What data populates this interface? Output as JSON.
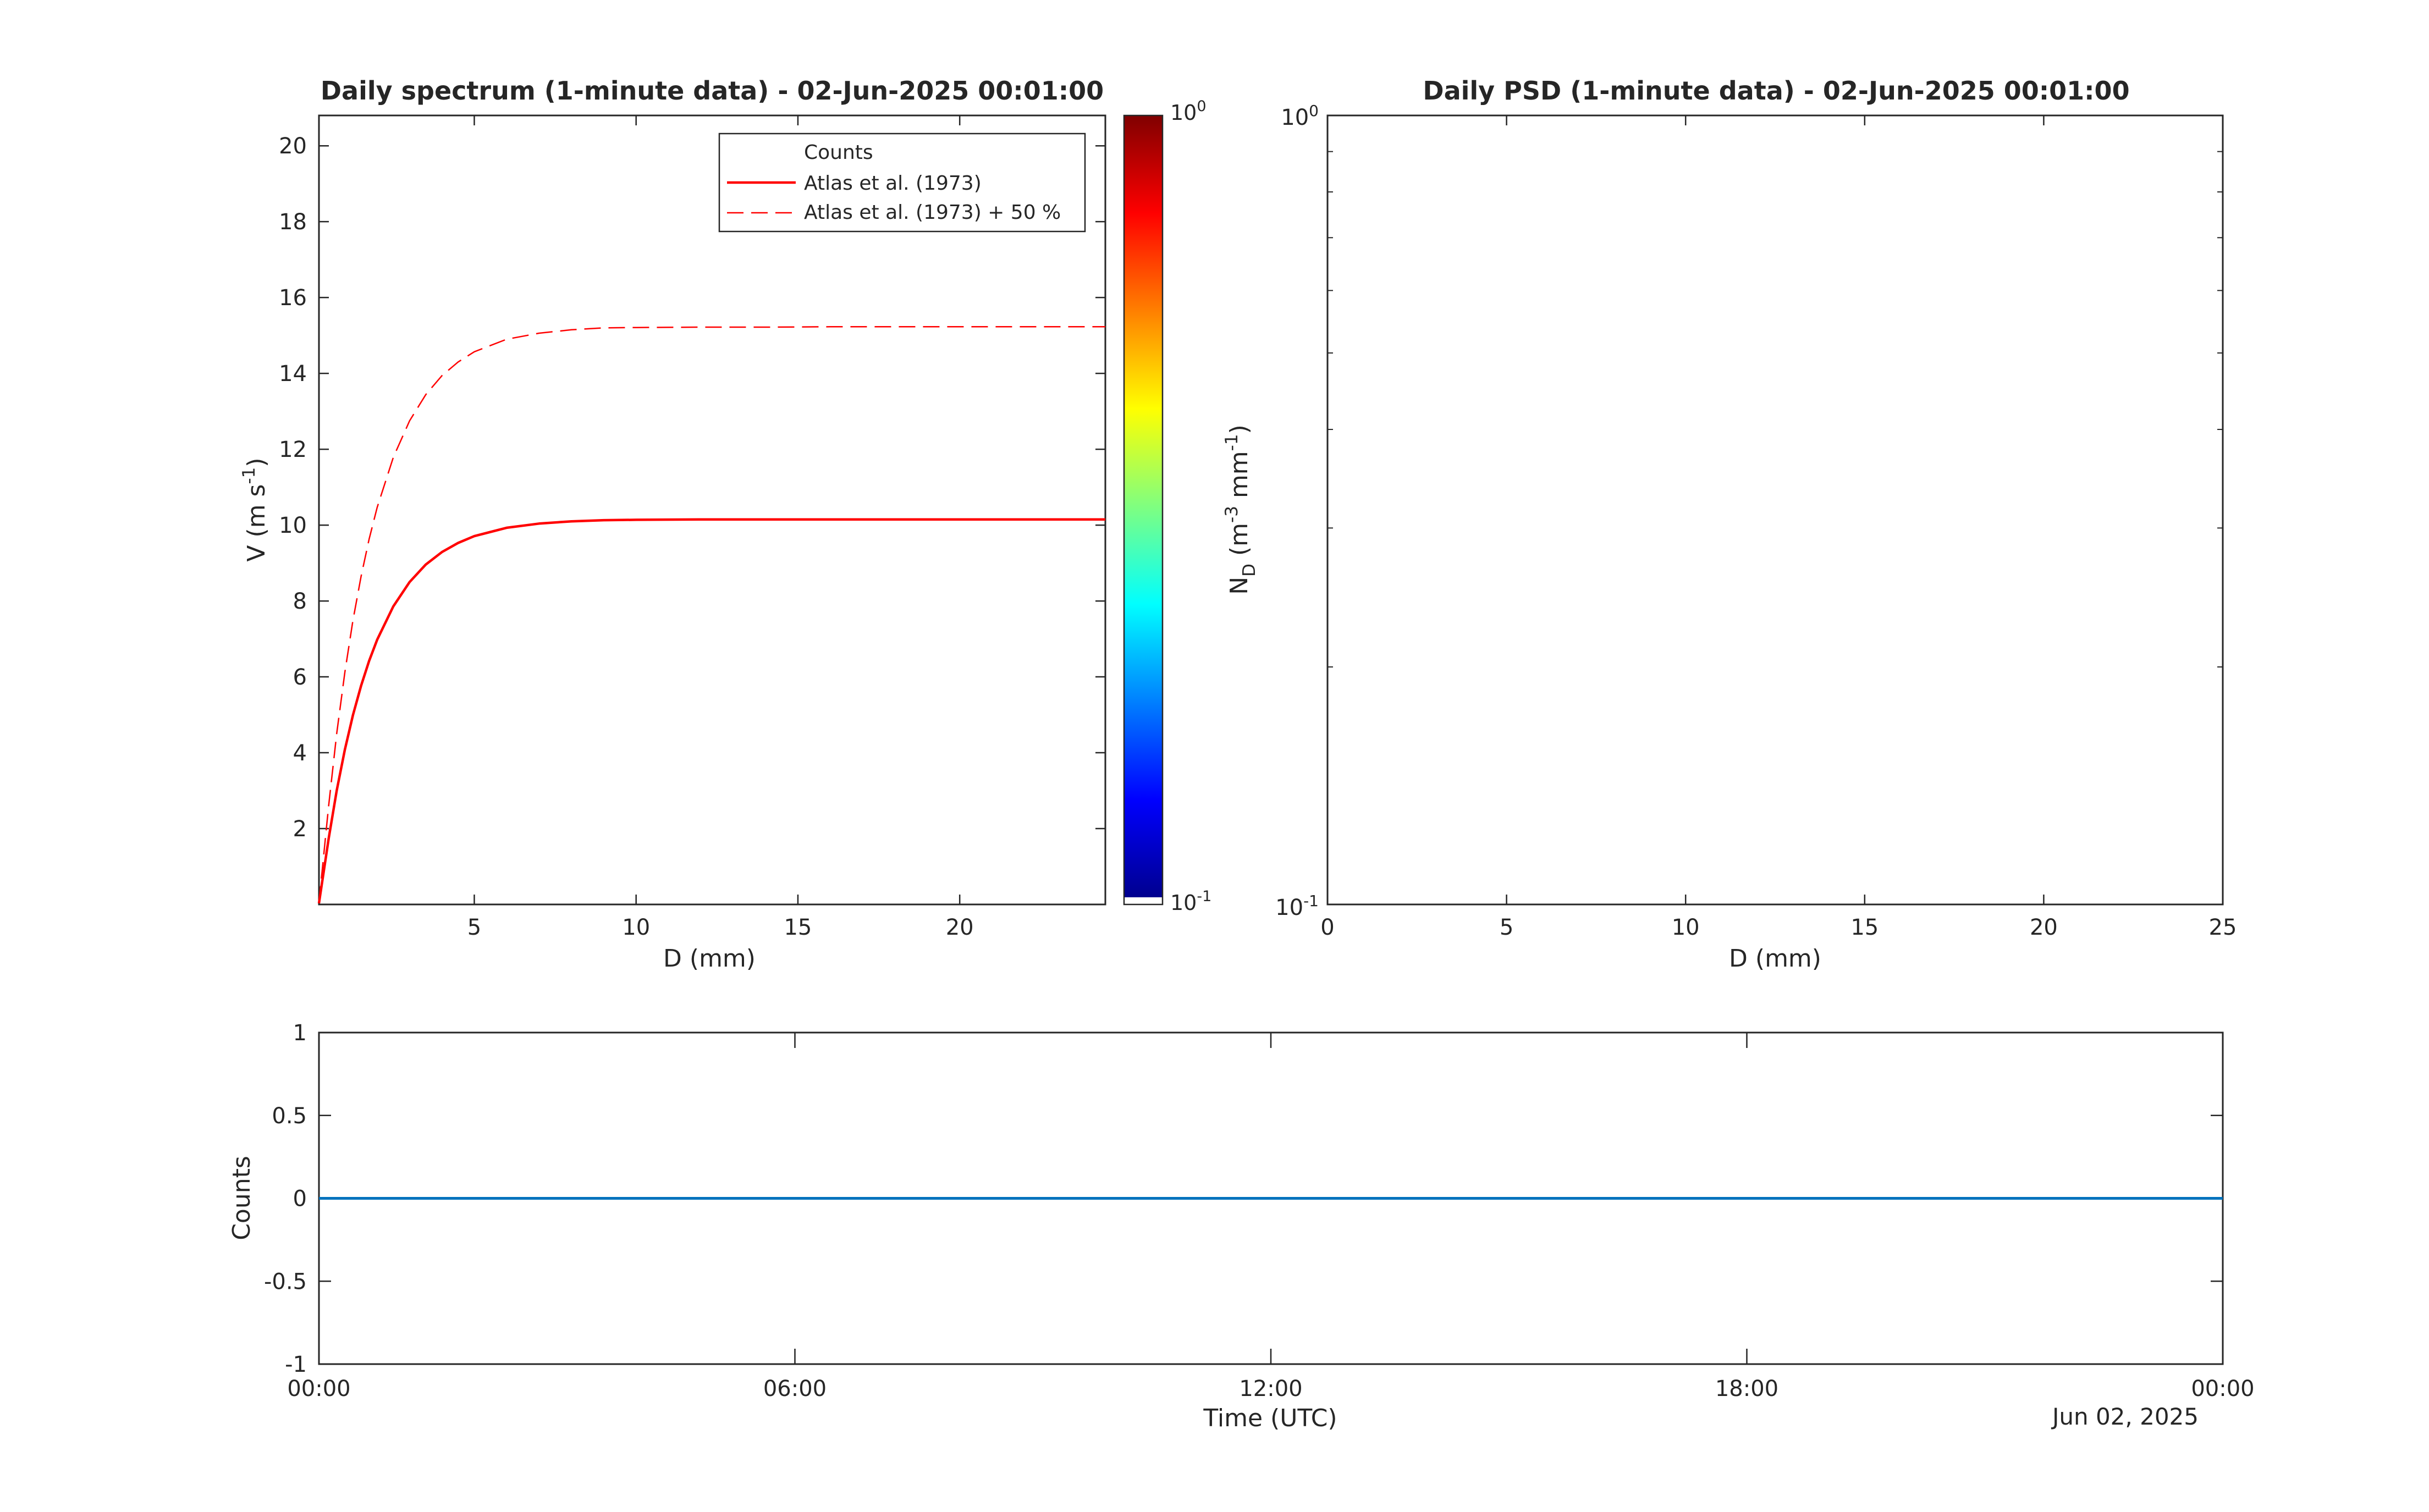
{
  "chart_data": [
    {
      "type": "line",
      "title": "Daily spectrum (1-minute data) - 02-Jun-2025 00:01:00",
      "xlabel": "D (mm)",
      "ylabel_main": "V (m s",
      "ylabel_sup": "-1",
      "ylabel_close": ")",
      "xlim": [
        0.2,
        24.5
      ],
      "ylim": [
        0,
        20.8
      ],
      "xticks": [
        5,
        10,
        15,
        20
      ],
      "xtick_labels": [
        "5",
        "10",
        "15",
        "20"
      ],
      "yticks": [
        2,
        4,
        6,
        8,
        10,
        12,
        14,
        16,
        18,
        20
      ],
      "ytick_labels": [
        "2",
        "4",
        "6",
        "8",
        "10",
        "12",
        "14",
        "16",
        "18",
        "20"
      ],
      "grid": false,
      "legend": {
        "placement": "top-right",
        "entries": [
          "Counts",
          "Atlas et al. (1973)",
          "Atlas et al. (1973) + 50 %"
        ]
      },
      "series": [
        {
          "name": "Atlas et al. (1973)",
          "color": "#ff0000",
          "style": "solid",
          "x": [
            0.2,
            0.5,
            0.75,
            1,
            1.25,
            1.5,
            1.75,
            2,
            2.5,
            3,
            3.5,
            4,
            4.5,
            5,
            6,
            7,
            8,
            9,
            10,
            12,
            14,
            16,
            18,
            20,
            22,
            24.5
          ],
          "y": [
            0.03,
            1.74,
            3.01,
            4.08,
            4.99,
            5.76,
            6.42,
            6.98,
            7.86,
            8.5,
            8.96,
            9.29,
            9.53,
            9.71,
            9.93,
            10.04,
            10.1,
            10.13,
            10.14,
            10.15,
            10.15,
            10.15,
            10.15,
            10.15,
            10.15,
            10.15
          ]
        },
        {
          "name": "Atlas et al. (1973) + 50 %",
          "color": "#ff0000",
          "style": "dashed",
          "x": [
            0.2,
            0.5,
            0.75,
            1,
            1.25,
            1.5,
            1.75,
            2,
            2.5,
            3,
            3.5,
            4,
            4.5,
            5,
            6,
            7,
            8,
            9,
            10,
            12,
            14,
            16,
            18,
            20,
            22,
            24.5
          ],
          "y": [
            0.05,
            2.61,
            4.52,
            6.12,
            7.49,
            8.64,
            9.63,
            10.47,
            11.79,
            12.75,
            13.44,
            13.94,
            14.3,
            14.57,
            14.9,
            15.06,
            15.15,
            15.2,
            15.21,
            15.22,
            15.22,
            15.23,
            15.23,
            15.23,
            15.23,
            15.23
          ]
        }
      ],
      "colorbar": {
        "scale": "log",
        "colormap": "jet",
        "tick_labels": [
          {
            "base": "10",
            "exp": "0"
          },
          {
            "base": "10",
            "exp": "-1"
          }
        ]
      }
    },
    {
      "type": "line",
      "title": "Daily PSD (1-minute data) - 02-Jun-2025 00:01:00",
      "xlabel": "D (mm)",
      "ylabel_main": "N",
      "ylabel_sub": "D",
      "ylabel_mid": " (m",
      "ylabel_sup1": "-3",
      "ylabel_mid2": " mm",
      "ylabel_sup2": "-1",
      "ylabel_close": ")",
      "xlim": [
        0,
        25
      ],
      "ylim": [
        0.1,
        1
      ],
      "yscale": "log",
      "xticks": [
        0,
        5,
        10,
        15,
        20,
        25
      ],
      "xtick_labels": [
        "0",
        "5",
        "10",
        "15",
        "20",
        "25"
      ],
      "ytick_labels": [
        {
          "base": "10",
          "exp": "0"
        },
        {
          "base": "10",
          "exp": "-1"
        }
      ],
      "grid": false,
      "series": []
    },
    {
      "type": "line",
      "xlabel": "Time (UTC)",
      "ylabel": "Counts",
      "date_label": "Jun 02, 2025",
      "ylim": [
        -1,
        1
      ],
      "yticks": [
        1,
        0.5,
        0,
        -0.5,
        -1
      ],
      "ytick_labels": [
        "1",
        "0.5",
        "0",
        "-0.5",
        "-1"
      ],
      "xtick_labels": [
        "00:00",
        "06:00",
        "12:00",
        "18:00",
        "00:00"
      ],
      "grid": false,
      "series": [
        {
          "color": "#0072bd",
          "x": [
            "2025-06-02 00:00",
            "2025-06-03 00:00"
          ],
          "y": [
            0,
            0
          ]
        }
      ]
    }
  ]
}
